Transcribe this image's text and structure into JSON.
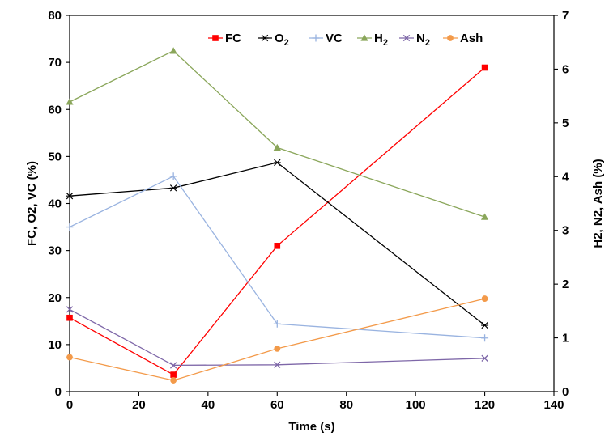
{
  "chart_data": {
    "type": "line",
    "x_axis": {
      "label": "Time (s)",
      "min": 0,
      "max": 140,
      "ticks": [
        0,
        20,
        40,
        60,
        80,
        100,
        120,
        140
      ]
    },
    "y_axis_left": {
      "label": "FC, O2, VC (%)",
      "min": 0,
      "max": 80,
      "ticks": [
        0,
        10,
        20,
        30,
        40,
        50,
        60,
        70,
        80
      ]
    },
    "y_axis_right": {
      "label": "H2, N2, Ash (%)",
      "min": 0,
      "max": 7,
      "ticks": [
        0,
        1,
        2,
        3,
        4,
        5,
        6,
        7
      ]
    },
    "legend_position": "top",
    "grid": false,
    "series": [
      {
        "key": "fc",
        "name": "FC",
        "legend_main": "FC",
        "legend_sub": "",
        "axis": "left",
        "color": "#ff0000",
        "marker": "square",
        "x": [
          0,
          30,
          60,
          120
        ],
        "y": [
          15.7,
          3.6,
          31.0,
          68.9
        ]
      },
      {
        "key": "o2",
        "name": "O2",
        "legend_main": "O",
        "legend_sub": "2",
        "axis": "left",
        "color": "#000000",
        "marker": "asterisk",
        "x": [
          0,
          30,
          60,
          120
        ],
        "y": [
          41.6,
          43.3,
          48.7,
          14.1
        ]
      },
      {
        "key": "vc",
        "name": "VC",
        "legend_main": "VC",
        "legend_sub": "",
        "axis": "left",
        "color": "#99b3e0",
        "marker": "plus",
        "x": [
          0,
          30,
          60,
          120
        ],
        "y": [
          35.0,
          45.8,
          14.4,
          11.4
        ]
      },
      {
        "key": "h2",
        "name": "H2",
        "legend_main": "H",
        "legend_sub": "2",
        "axis": "right",
        "color": "#8aa65a",
        "marker": "triangle",
        "x": [
          0,
          30,
          60,
          120
        ],
        "y": [
          5.39,
          6.34,
          4.54,
          3.25
        ]
      },
      {
        "key": "n2",
        "name": "N2",
        "legend_main": "N",
        "legend_sub": "2",
        "axis": "right",
        "color": "#7e67a8",
        "marker": "x",
        "x": [
          0,
          30,
          60,
          120
        ],
        "y": [
          1.53,
          0.49,
          0.5,
          0.62
        ]
      },
      {
        "key": "ash",
        "name": "Ash",
        "legend_main": "Ash",
        "legend_sub": "",
        "axis": "right",
        "color": "#f39a4a",
        "marker": "circle",
        "x": [
          0,
          30,
          60,
          120
        ],
        "y": [
          0.64,
          0.21,
          0.8,
          1.73
        ]
      }
    ]
  }
}
